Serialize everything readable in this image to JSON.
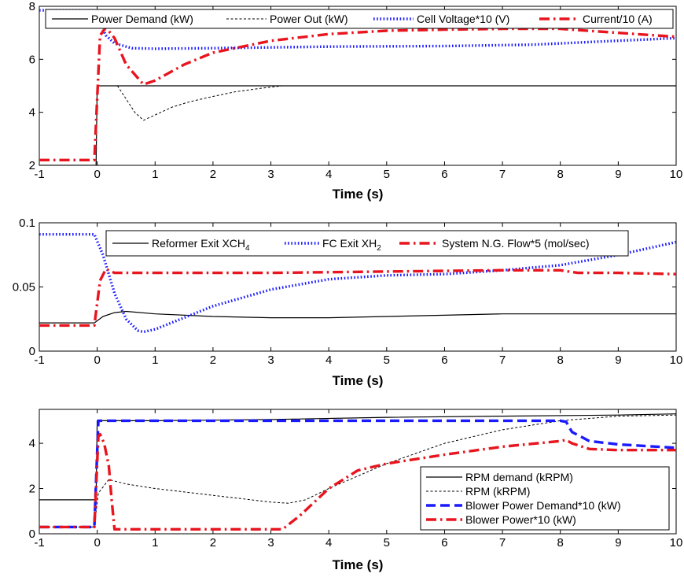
{
  "colors": {
    "black": "#000000",
    "blue": "#1a1aff",
    "red": "#e8141e"
  },
  "chart_data": [
    {
      "type": "line",
      "xlabel": "Time (s)",
      "xlim": [
        -1,
        10
      ],
      "ylim": [
        2,
        8
      ],
      "xticks": [
        "-1",
        "0",
        "1",
        "2",
        "3",
        "4",
        "5",
        "6",
        "7",
        "8",
        "9",
        "10"
      ],
      "yticks": [
        "2",
        "4",
        "6",
        "8"
      ],
      "legend": "top",
      "series": [
        {
          "name": "Power Demand (kW)",
          "color": "#000000",
          "dash": "solid",
          "x": [
            -1,
            -0.02,
            0,
            10
          ],
          "y": [
            2,
            2,
            5,
            5
          ]
        },
        {
          "name": "Power Out (kW)",
          "color": "#000000",
          "dash": "dashed",
          "x": [
            0.35,
            0.5,
            0.65,
            0.8,
            1.0,
            1.3,
            1.6,
            2.0,
            2.4,
            2.8,
            3.2
          ],
          "y": [
            5.0,
            4.5,
            4.0,
            3.7,
            3.9,
            4.2,
            4.4,
            4.6,
            4.78,
            4.9,
            5.0
          ]
        },
        {
          "name": "Cell Voltage*10 (V)",
          "color": "#1a1aff",
          "dash": "dotted",
          "x": [
            -1,
            -0.05,
            0.02,
            0.15,
            0.3,
            0.6,
            1.0,
            2.0,
            4.0,
            6.0,
            7.5,
            8.5,
            9.5,
            10
          ],
          "y": [
            7.85,
            7.85,
            7.5,
            6.9,
            6.6,
            6.42,
            6.4,
            6.42,
            6.48,
            6.5,
            6.55,
            6.65,
            6.75,
            6.8
          ]
        },
        {
          "name": "Current/10 (A)",
          "color": "#e8141e",
          "dash": "dashdot",
          "x": [
            -1,
            -0.05,
            0.05,
            0.15,
            0.3,
            0.5,
            0.8,
            1.0,
            1.5,
            2.0,
            3.0,
            4.0,
            5.0,
            6.0,
            7.0,
            8.0,
            9.0,
            10
          ],
          "y": [
            2.2,
            2.2,
            6.9,
            7.2,
            6.8,
            5.8,
            5.05,
            5.2,
            5.8,
            6.25,
            6.7,
            6.95,
            7.08,
            7.12,
            7.15,
            7.15,
            7.0,
            6.85
          ]
        }
      ]
    },
    {
      "type": "line",
      "xlabel": "Time (s)",
      "xlim": [
        -1,
        10
      ],
      "ylim": [
        0,
        0.1
      ],
      "xticks": [
        "-1",
        "0",
        "1",
        "2",
        "3",
        "4",
        "5",
        "6",
        "7",
        "8",
        "9",
        "10"
      ],
      "yticks": [
        "0",
        "0.05",
        "0.1"
      ],
      "legend": "top",
      "series": [
        {
          "name": "Reformer Exit XCH",
          "name_subscript": "4",
          "color": "#000000",
          "dash": "solid",
          "x": [
            -1,
            -0.05,
            0.1,
            0.3,
            0.5,
            1.0,
            2.0,
            3.0,
            4.0,
            5.0,
            6.0,
            7.0,
            8.0,
            9.0,
            10
          ],
          "y": [
            0.022,
            0.022,
            0.027,
            0.03,
            0.031,
            0.029,
            0.027,
            0.026,
            0.026,
            0.027,
            0.028,
            0.029,
            0.029,
            0.029,
            0.029
          ]
        },
        {
          "name": "FC Exit XH",
          "name_subscript": "2",
          "color": "#1a1aff",
          "dash": "dotted",
          "x": [
            -1,
            -0.05,
            0.1,
            0.3,
            0.5,
            0.7,
            0.8,
            1.0,
            1.5,
            2.0,
            3.0,
            4.0,
            5.0,
            6.0,
            7.0,
            8.0,
            9.0,
            10
          ],
          "y": [
            0.091,
            0.091,
            0.075,
            0.045,
            0.025,
            0.016,
            0.015,
            0.017,
            0.026,
            0.035,
            0.048,
            0.056,
            0.059,
            0.06,
            0.063,
            0.067,
            0.075,
            0.085
          ]
        },
        {
          "name": "System N.G. Flow*5 (mol/sec)",
          "color": "#e8141e",
          "dash": "dashdot",
          "x": [
            -1,
            -0.05,
            0.05,
            0.15,
            0.3,
            1.0,
            3.0,
            5.0,
            7.0,
            8.0,
            8.3,
            9.0,
            10
          ],
          "y": [
            0.02,
            0.02,
            0.055,
            0.064,
            0.061,
            0.061,
            0.061,
            0.062,
            0.063,
            0.063,
            0.061,
            0.061,
            0.06
          ]
        }
      ]
    },
    {
      "type": "line",
      "xlabel": "Time (s)",
      "xlim": [
        -1,
        10
      ],
      "ylim": [
        0,
        5.5
      ],
      "xticks": [
        "-1",
        "0",
        "1",
        "2",
        "3",
        "4",
        "5",
        "6",
        "7",
        "8",
        "9",
        "10"
      ],
      "yticks": [
        "0",
        "2",
        "4"
      ],
      "legend": "bottom-right",
      "series": [
        {
          "name": "RPM demand (kRPM)",
          "color": "#000000",
          "dash": "solid",
          "x": [
            -1,
            -0.02,
            0,
            1.0,
            3.0,
            5.0,
            7.0,
            9.0,
            10
          ],
          "y": [
            1.5,
            1.5,
            5.0,
            5.0,
            5.05,
            5.15,
            5.2,
            5.25,
            5.3
          ]
        },
        {
          "name": "RPM (kRPM)",
          "color": "#000000",
          "dash": "dashed",
          "x": [
            -1,
            -0.05,
            0.02,
            0.2,
            0.5,
            1.0,
            2.0,
            3.0,
            3.3,
            3.6,
            4.0,
            5.0,
            6.0,
            7.0,
            8.0,
            9.0,
            10
          ],
          "y": [
            0.3,
            0.3,
            1.8,
            2.4,
            2.2,
            2.0,
            1.7,
            1.4,
            1.35,
            1.5,
            2.0,
            3.1,
            4.0,
            4.6,
            5.0,
            5.2,
            5.25
          ]
        },
        {
          "name": "Blower Power Demand*10 (kW)",
          "color": "#1a1aff",
          "dash": "dashed",
          "x": [
            -1,
            -0.05,
            0.02,
            1.0,
            8.0,
            8.1,
            8.2,
            8.5,
            9.0,
            10
          ],
          "y": [
            0.3,
            0.3,
            5.0,
            5.0,
            5.0,
            4.95,
            4.5,
            4.1,
            3.95,
            3.8
          ]
        },
        {
          "name": "Blower Power*10 (kW)",
          "color": "#e8141e",
          "dash": "dashdot",
          "x": [
            -1,
            -0.05,
            0.02,
            0.05,
            0.12,
            0.2,
            0.25,
            0.3,
            1.0,
            3.2,
            3.5,
            4.0,
            4.5,
            5.0,
            6.0,
            7.0,
            8.0,
            8.1,
            8.2,
            8.5,
            9.0,
            10
          ],
          "y": [
            0.3,
            0.3,
            4.3,
            4.4,
            4.0,
            3.0,
            1.5,
            0.2,
            0.2,
            0.2,
            0.8,
            2.0,
            2.8,
            3.1,
            3.5,
            3.85,
            4.1,
            4.15,
            4.0,
            3.75,
            3.7,
            3.7
          ]
        }
      ]
    }
  ]
}
